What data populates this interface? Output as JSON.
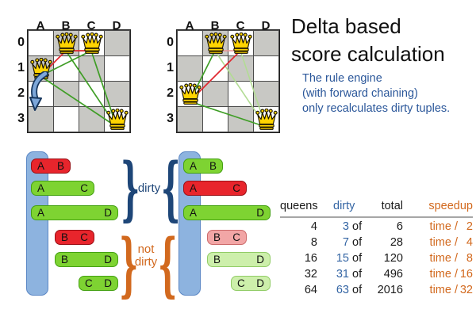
{
  "title": {
    "line1": "Delta based",
    "line2": "score calculation"
  },
  "subtitle": {
    "line1": "The rule engine",
    "line2": "(with forward chaining)",
    "line3": "only recalculates dirty tuples."
  },
  "board": {
    "columns": [
      "A",
      "B",
      "C",
      "D"
    ],
    "rows": [
      "0",
      "1",
      "2",
      "3"
    ]
  },
  "boards": [
    {
      "name": "before-move",
      "queens": [
        {
          "col": 1,
          "row": 0
        },
        {
          "col": 2,
          "row": 0
        },
        {
          "col": 0,
          "row": 1
        },
        {
          "col": 3,
          "row": 3
        }
      ],
      "lines": [
        {
          "from": [
            1,
            0
          ],
          "to": [
            2,
            0
          ],
          "state": "red"
        },
        {
          "from": [
            1,
            0
          ],
          "to": [
            0,
            1
          ],
          "state": "red"
        },
        {
          "from": [
            2,
            0
          ],
          "to": [
            0,
            1
          ],
          "state": "green"
        },
        {
          "from": [
            1,
            0
          ],
          "to": [
            3,
            3
          ],
          "state": "green"
        },
        {
          "from": [
            2,
            0
          ],
          "to": [
            3,
            3
          ],
          "state": "green"
        },
        {
          "from": [
            0,
            1
          ],
          "to": [
            3,
            3
          ],
          "state": "green"
        }
      ],
      "move_arrow": true
    },
    {
      "name": "after-move",
      "queens": [
        {
          "col": 1,
          "row": 0
        },
        {
          "col": 2,
          "row": 0
        },
        {
          "col": 0,
          "row": 2
        },
        {
          "col": 3,
          "row": 3
        }
      ],
      "lines": [
        {
          "from": [
            1,
            0
          ],
          "to": [
            2,
            0
          ],
          "state": "red-faded"
        },
        {
          "from": [
            1,
            0
          ],
          "to": [
            3,
            3
          ],
          "state": "green-faded"
        },
        {
          "from": [
            2,
            0
          ],
          "to": [
            3,
            3
          ],
          "state": "green-faded"
        },
        {
          "from": [
            2,
            0
          ],
          "to": [
            0,
            2
          ],
          "state": "red"
        },
        {
          "from": [
            1,
            0
          ],
          "to": [
            0,
            2
          ],
          "state": "green"
        },
        {
          "from": [
            0,
            2
          ],
          "to": [
            3,
            3
          ],
          "state": "green"
        }
      ],
      "move_arrow": false
    }
  ],
  "diagrams": [
    {
      "name": "tuples-before",
      "bars": [
        {
          "a": "A",
          "b": "B",
          "state": "red"
        },
        {
          "a": "A",
          "b": "C",
          "state": "green"
        },
        {
          "a": "A",
          "b": "D",
          "state": "green"
        },
        {
          "a": "B",
          "b": "C",
          "state": "red"
        },
        {
          "a": "B",
          "b": "D",
          "state": "green"
        },
        {
          "a": "C",
          "b": "D",
          "state": "green"
        }
      ]
    },
    {
      "name": "tuples-after",
      "bars": [
        {
          "a": "A",
          "b": "B",
          "state": "green"
        },
        {
          "a": "A",
          "b": "C",
          "state": "red"
        },
        {
          "a": "A",
          "b": "D",
          "state": "green"
        },
        {
          "a": "B",
          "b": "C",
          "state": "red-faded"
        },
        {
          "a": "B",
          "b": "D",
          "state": "green-faded"
        },
        {
          "a": "C",
          "b": "D",
          "state": "green-faded"
        }
      ]
    }
  ],
  "braces": {
    "dirty_label": "dirty",
    "not_dirty_line1": "not",
    "not_dirty_line2": "dirty"
  },
  "table": {
    "headers": {
      "queens": "queens",
      "dirty": "dirty",
      "total": "total",
      "speedup": "speedup"
    },
    "of_label": "of",
    "time_label": "time /",
    "rows": [
      {
        "queens": "4",
        "dirty": "3",
        "total": "6",
        "speedup_divisor": "2"
      },
      {
        "queens": "8",
        "dirty": "7",
        "total": "28",
        "speedup_divisor": "4"
      },
      {
        "queens": "16",
        "dirty": "15",
        "total": "120",
        "speedup_divisor": "8"
      },
      {
        "queens": "32",
        "dirty": "31",
        "total": "496",
        "speedup_divisor": "16"
      },
      {
        "queens": "64",
        "dirty": "63",
        "total": "2016",
        "speedup_divisor": "32"
      }
    ]
  },
  "colors": {
    "conflict_red": "#e8252c",
    "ok_green": "#7ed332",
    "faded_red": "#f2a6a6",
    "faded_green": "#cdefab",
    "column_bar_blue": "#8db3df",
    "brace_blue": "#1e4678",
    "accent_orange": "#d2691e",
    "table_blue": "#3465a4",
    "subtitle_blue": "#2b579a",
    "board_dark_cell": "#c8c8c4",
    "queen_gold": "#ffd401"
  }
}
